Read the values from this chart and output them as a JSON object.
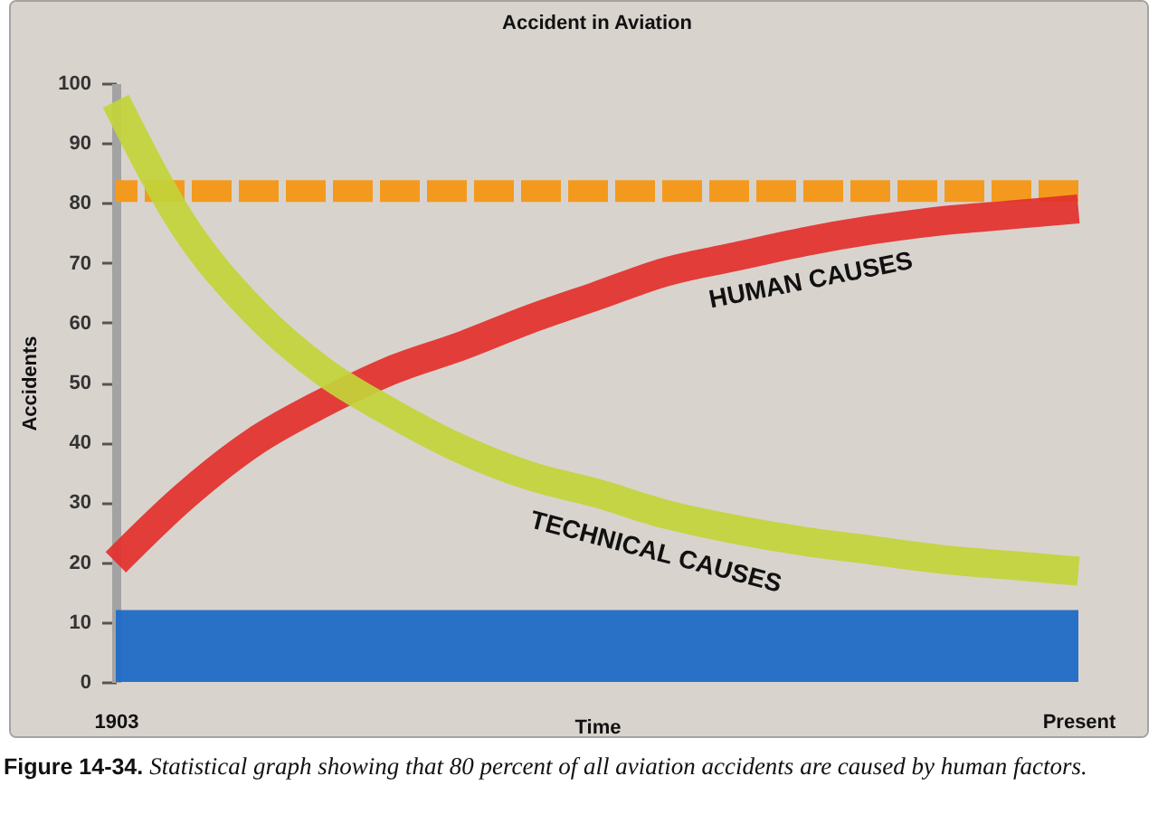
{
  "chart_data": {
    "type": "line",
    "title": "Accident in Aviation",
    "xlabel": "Time",
    "ylabel": "Accidents",
    "categories": [
      "1903",
      null,
      null,
      null,
      null,
      null,
      null,
      null,
      null,
      null,
      null,
      null,
      null,
      null,
      "Present"
    ],
    "series": [
      {
        "name": "HUMAN CAUSES",
        "color": "#e3302c",
        "values": [
          20,
          31,
          40,
          46.5,
          52,
          56,
          60.5,
          64.5,
          68.5,
          71,
          73.5,
          75.5,
          77,
          78,
          79
        ]
      },
      {
        "name": "TECHNICAL CAUSES",
        "color": "#c3d43a",
        "values": [
          97,
          76,
          62,
          52,
          45,
          39,
          34.5,
          31.5,
          28,
          25.5,
          23.5,
          22,
          20.5,
          19.5,
          18.5
        ]
      }
    ],
    "ylim": [
      0,
      100
    ],
    "yticks": [
      0,
      10,
      20,
      30,
      40,
      50,
      60,
      70,
      80,
      90,
      100
    ],
    "ref_lines": [
      {
        "axis": "y",
        "value": 82,
        "color": "#f39a1e",
        "line_style": "dashed"
      }
    ],
    "bands": [
      {
        "axis": "y",
        "from": 0,
        "to": 12,
        "color": "#1f6cc6"
      }
    ],
    "line_style": "solid",
    "annotations": [
      "Figure 14-34. Statistical graph showing that 80 percent of all aviation accidents are caused by human factors."
    ]
  }
}
